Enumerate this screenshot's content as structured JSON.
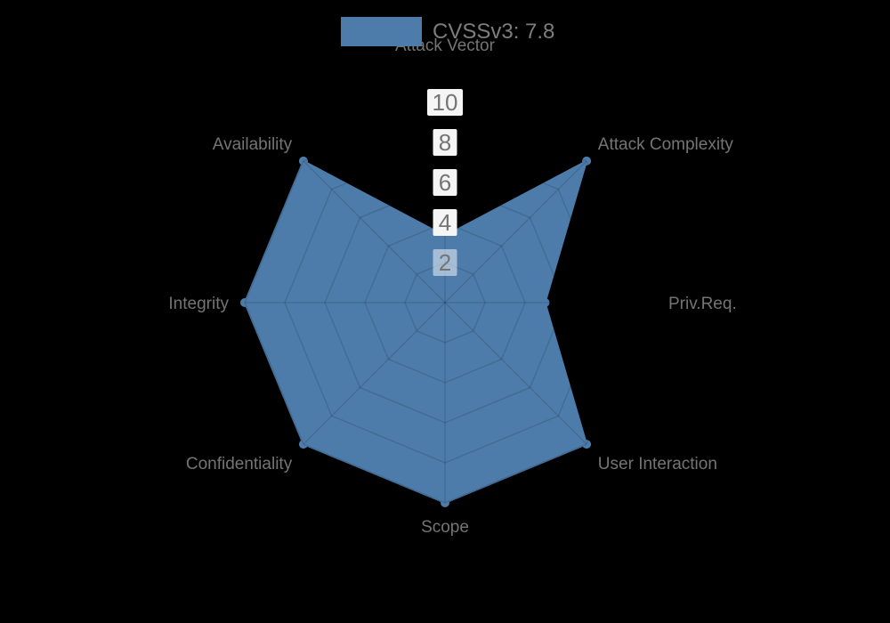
{
  "legend": {
    "label": "CVSSv3: 7.8"
  },
  "colors": {
    "background": "#000000",
    "series_fill": "#4d7caa",
    "series_border": "#4d7caa",
    "grid_line": "rgba(0,0,0,0.13)",
    "tick_box_opaque": "#f5f5f5",
    "tick_box_translucent": "rgba(255,255,255,0.5)",
    "tick_text": "#757575",
    "axis_label_text": "#747474",
    "legend_text": "#7d7d7d"
  },
  "chart_data": {
    "type": "radar",
    "title": "CVSSv3: 7.8",
    "categories": [
      "Attack Vector",
      "Attack Complexity",
      "Priv.Req.",
      "User Interaction",
      "Scope",
      "Confidentiality",
      "Integrity",
      "Availability"
    ],
    "series": [
      {
        "name": "CVSSv3: 7.8",
        "values": [
          3.33,
          10,
          5,
          10,
          10,
          10,
          10,
          10
        ]
      }
    ],
    "rmax": 10,
    "rings": [
      2,
      4,
      6,
      8,
      10
    ],
    "tick_labels": [
      "2",
      "4",
      "6",
      "8",
      "10"
    ],
    "grid": "web",
    "legend_position": "top"
  }
}
